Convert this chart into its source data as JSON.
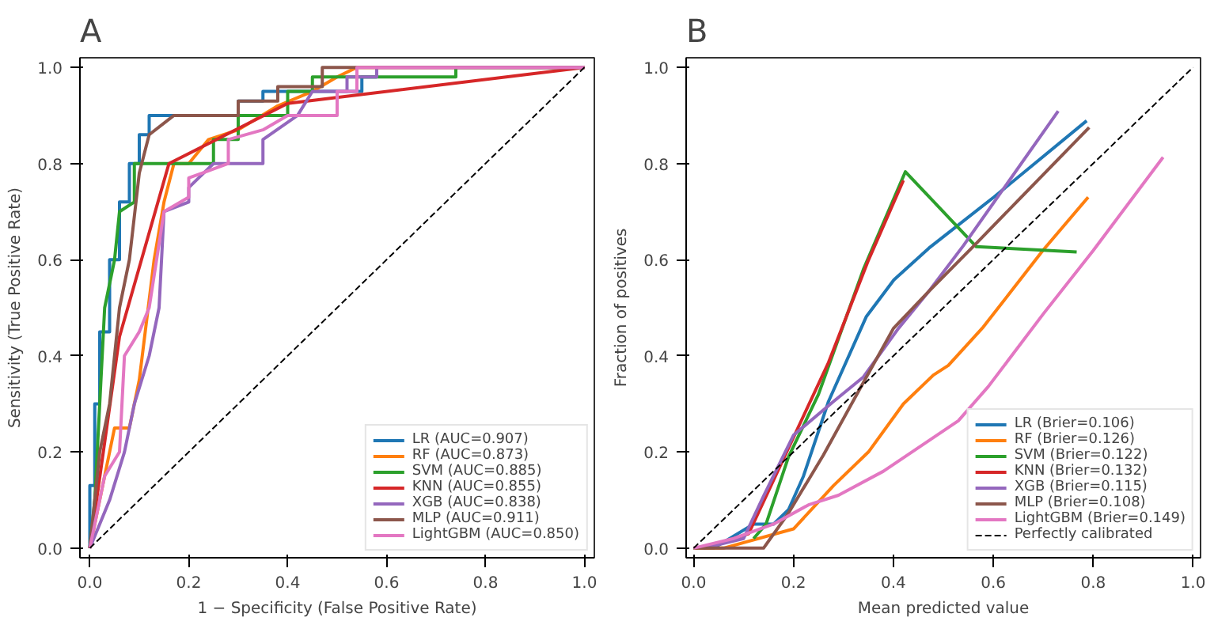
{
  "chart_data": [
    {
      "type": "line",
      "title": "A",
      "xlabel": "1 − Specificity (False Positive Rate)",
      "ylabel": "Sensitivity (True Positive Rate)",
      "xlim": [
        -0.02,
        1.02
      ],
      "ylim": [
        -0.02,
        1.02
      ],
      "xticks": [
        {
          "value": 0,
          "label": "0.0"
        },
        {
          "value": 0.2,
          "label": "0.2"
        },
        {
          "value": 0.4,
          "label": "0.4"
        },
        {
          "value": 0.6,
          "label": "0.6"
        },
        {
          "value": 0.8,
          "label": "0.8"
        },
        {
          "value": 1,
          "label": "1.0"
        }
      ],
      "yticks": [
        {
          "value": 0,
          "label": "0.0"
        },
        {
          "value": 0.2,
          "label": "0.2"
        },
        {
          "value": 0.4,
          "label": "0.4"
        },
        {
          "value": 0.6,
          "label": "0.6"
        },
        {
          "value": 0.8,
          "label": "0.8"
        },
        {
          "value": 1,
          "label": "1.0"
        }
      ],
      "legend": "bottom right",
      "grid": false,
      "series": [
        {
          "name": "LR (AUC=0.907)",
          "color": "#1f77b4",
          "x": [
            0,
            0,
            0.01,
            0.01,
            0.02,
            0.02,
            0.04,
            0.04,
            0.06,
            0.06,
            0.08,
            0.08,
            0.1,
            0.1,
            0.12,
            0.12,
            0.3,
            0.3,
            0.35,
            0.35,
            0.55,
            0.55,
            0.58
          ],
          "values": [
            0,
            0.13,
            0.13,
            0.3,
            0.3,
            0.45,
            0.45,
            0.6,
            0.6,
            0.72,
            0.72,
            0.8,
            0.8,
            0.86,
            0.86,
            0.9,
            0.9,
            0.93,
            0.93,
            0.95,
            0.95,
            0.98,
            0.98
          ]
        },
        {
          "name": "RF (AUC=0.873)",
          "color": "#ff7f0e",
          "x": [
            0,
            0.03,
            0.05,
            0.08,
            0.1,
            0.13,
            0.15,
            0.17,
            0.2,
            0.24,
            0.3,
            0.38,
            0.45,
            0.5,
            0.54,
            1
          ],
          "values": [
            0,
            0.15,
            0.25,
            0.25,
            0.35,
            0.6,
            0.72,
            0.8,
            0.8,
            0.85,
            0.87,
            0.92,
            0.95,
            0.98,
            1,
            1
          ]
        },
        {
          "name": "SVM (AUC=0.885)",
          "color": "#2ca02c",
          "x": [
            0,
            0.01,
            0.02,
            0.03,
            0.05,
            0.06,
            0.09,
            0.09,
            0.14,
            0.25,
            0.25,
            0.3,
            0.3,
            0.4,
            0.4,
            0.45,
            0.45,
            0.74,
            0.74,
            1
          ],
          "values": [
            0,
            0.1,
            0.3,
            0.5,
            0.6,
            0.7,
            0.72,
            0.8,
            0.8,
            0.8,
            0.85,
            0.85,
            0.9,
            0.9,
            0.95,
            0.95,
            0.98,
            0.98,
            1,
            1
          ]
        },
        {
          "name": "KNN (AUC=0.855)",
          "color": "#d62728",
          "x": [
            0,
            0.06,
            0.16,
            0.4,
            1
          ],
          "values": [
            0,
            0.44,
            0.8,
            0.925,
            1
          ]
        },
        {
          "name": "XGB (AUC=0.838)",
          "color": "#9467bd",
          "x": [
            0,
            0.02,
            0.04,
            0.07,
            0.09,
            0.12,
            0.14,
            0.15,
            0.2,
            0.2,
            0.25,
            0.35,
            0.35,
            0.42,
            0.45,
            0.52,
            0.52,
            0.58,
            0.58,
            1
          ],
          "values": [
            0,
            0.05,
            0.1,
            0.2,
            0.3,
            0.4,
            0.5,
            0.7,
            0.72,
            0.75,
            0.8,
            0.8,
            0.85,
            0.9,
            0.95,
            0.95,
            0.98,
            0.98,
            1,
            1
          ]
        },
        {
          "name": "MLP (AUC=0.911)",
          "color": "#8c564b",
          "x": [
            0,
            0.01,
            0.02,
            0.04,
            0.06,
            0.08,
            0.1,
            0.12,
            0.17,
            0.3,
            0.3,
            0.38,
            0.38,
            0.47,
            0.47,
            1
          ],
          "values": [
            0,
            0.1,
            0.2,
            0.3,
            0.5,
            0.6,
            0.78,
            0.86,
            0.9,
            0.9,
            0.93,
            0.93,
            0.96,
            0.96,
            1,
            1
          ]
        },
        {
          "name": "LightGBM (AUC=0.850)",
          "color": "#e377c2",
          "x": [
            0,
            0.01,
            0.03,
            0.06,
            0.07,
            0.1,
            0.12,
            0.15,
            0.2,
            0.2,
            0.28,
            0.28,
            0.35,
            0.4,
            0.5,
            0.5,
            0.54,
            0.54,
            1
          ],
          "values": [
            0,
            0.05,
            0.15,
            0.2,
            0.4,
            0.45,
            0.5,
            0.7,
            0.73,
            0.77,
            0.8,
            0.85,
            0.87,
            0.9,
            0.9,
            0.95,
            0.95,
            1,
            1
          ]
        },
        {
          "color": "#000000",
          "line_style": "dashed",
          "x": [
            0,
            1
          ],
          "values": [
            0,
            1
          ]
        }
      ]
    },
    {
      "type": "line",
      "title": "B",
      "xlabel": "Mean predicted value",
      "ylabel": "Fraction of positives",
      "xlim": [
        -0.015,
        1.015
      ],
      "ylim": [
        -0.02,
        1.02
      ],
      "xticks": [
        {
          "value": 0,
          "label": "0.0"
        },
        {
          "value": 0.2,
          "label": "0.2"
        },
        {
          "value": 0.4,
          "label": "0.4"
        },
        {
          "value": 0.6,
          "label": "0.6"
        },
        {
          "value": 0.8,
          "label": "0.8"
        },
        {
          "value": 1,
          "label": "1.0"
        }
      ],
      "yticks": [
        {
          "value": 0,
          "label": "0.0"
        },
        {
          "value": 0.2,
          "label": "0.2"
        },
        {
          "value": 0.4,
          "label": "0.4"
        },
        {
          "value": 0.6,
          "label": "0.6"
        },
        {
          "value": 0.8,
          "label": "0.8"
        },
        {
          "value": 1,
          "label": "1.0"
        }
      ],
      "legend": "bottom right",
      "grid": false,
      "series": [
        {
          "name": "LR (Brier=0.106)",
          "color": "#1f77b4",
          "x": [
            0,
            0.04,
            0.12,
            0.16,
            0.19,
            0.22,
            0.27,
            0.346,
            0.401,
            0.471,
            0.601,
            0.787
          ],
          "values": [
            0,
            0,
            0.05,
            0.05,
            0.08,
            0.15,
            0.305,
            0.482,
            0.558,
            0.624,
            0.73,
            0.889
          ]
        },
        {
          "name": "RF (Brier=0.126)",
          "color": "#ff7f0e",
          "x": [
            0,
            0.06,
            0.2,
            0.28,
            0.35,
            0.42,
            0.48,
            0.51,
            0.58,
            0.7,
            0.79
          ],
          "values": [
            0,
            0,
            0.04,
            0.13,
            0.2,
            0.3,
            0.36,
            0.38,
            0.46,
            0.62,
            0.73
          ]
        },
        {
          "name": "SVM (Brier=0.122)",
          "color": "#2ca02c",
          "x": [
            0.12,
            0.145,
            0.19,
            0.25,
            0.34,
            0.424,
            0.566,
            0.767
          ],
          "values": [
            0.02,
            0.05,
            0.19,
            0.32,
            0.58,
            0.783,
            0.627,
            0.616
          ]
        },
        {
          "name": "KNN (Brier=0.132)",
          "color": "#d62728",
          "x": [
            0.02,
            0.11,
            0.22,
            0.27,
            0.35,
            0.42
          ],
          "values": [
            0,
            0.03,
            0.275,
            0.386,
            0.599,
            0.765
          ]
        },
        {
          "name": "XGB (Brier=0.115)",
          "color": "#9467bd",
          "x": [
            0.02,
            0.1,
            0.14,
            0.2,
            0.28,
            0.34,
            0.41,
            0.47,
            0.54,
            0.73
          ],
          "values": [
            0,
            0.02,
            0.108,
            0.235,
            0.305,
            0.356,
            0.457,
            0.533,
            0.629,
            0.909
          ]
        },
        {
          "name": "MLP (Brier=0.108)",
          "color": "#8c564b",
          "x": [
            0,
            0.14,
            0.19,
            0.26,
            0.33,
            0.4,
            0.47,
            0.566,
            0.792
          ],
          "values": [
            0,
            0,
            0.073,
            0.194,
            0.326,
            0.457,
            0.533,
            0.634,
            0.875
          ]
        },
        {
          "name": "LightGBM (Brier=0.149)",
          "color": "#e377c2",
          "x": [
            0,
            0.08,
            0.16,
            0.23,
            0.29,
            0.38,
            0.43,
            0.53,
            0.59,
            0.7,
            0.8,
            0.94
          ],
          "values": [
            0,
            0.02,
            0.05,
            0.09,
            0.11,
            0.16,
            0.195,
            0.265,
            0.336,
            0.487,
            0.619,
            0.813
          ]
        },
        {
          "name": "Perfectly calibrated",
          "color": "#000000",
          "line_style": "dashed",
          "x": [
            0,
            1
          ],
          "values": [
            0,
            1
          ]
        }
      ]
    }
  ]
}
